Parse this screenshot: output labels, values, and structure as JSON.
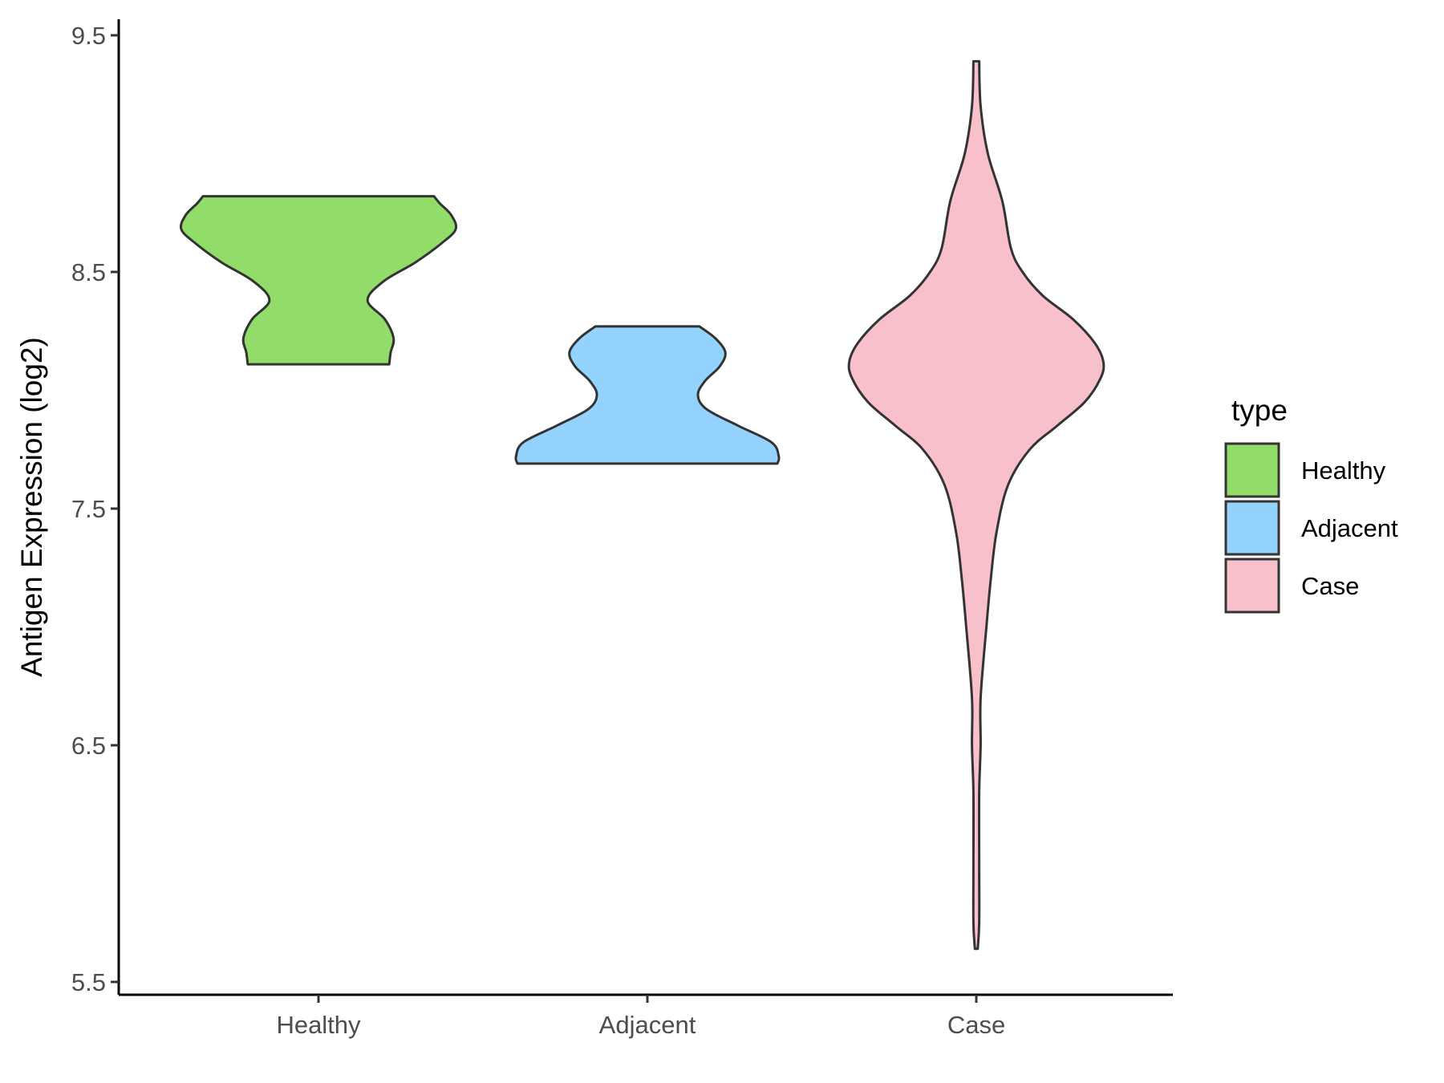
{
  "chart_data": {
    "type": "violin",
    "title": "",
    "xlabel": "",
    "ylabel": "Antigen Expression (log2)",
    "ylim": [
      5.45,
      9.55
    ],
    "yticks": [
      5.5,
      6.5,
      7.5,
      8.5,
      9.5
    ],
    "ytick_labels": [
      "5.5",
      "6.5",
      "7.5",
      "8.5",
      "9.5"
    ],
    "categories": [
      "Healthy",
      "Adjacent",
      "Case"
    ],
    "grid": false,
    "legend": {
      "title": "type",
      "position": "right",
      "entries": [
        {
          "label": "Healthy",
          "color": "#92DC6A"
        },
        {
          "label": "Adjacent",
          "color": "#94D3FD"
        },
        {
          "label": "Case",
          "color": "#F7C0CB"
        }
      ]
    },
    "series": [
      {
        "category": "Healthy",
        "color": "#92DC6A",
        "min": 8.11,
        "max": 8.82,
        "density": [
          [
            8.11,
            0.49
          ],
          [
            8.16,
            0.5
          ],
          [
            8.22,
            0.52
          ],
          [
            8.3,
            0.46
          ],
          [
            8.38,
            0.34
          ],
          [
            8.46,
            0.45
          ],
          [
            8.54,
            0.67
          ],
          [
            8.62,
            0.85
          ],
          [
            8.68,
            0.95
          ],
          [
            8.74,
            0.92
          ],
          [
            8.79,
            0.84
          ],
          [
            8.82,
            0.8
          ]
        ]
      },
      {
        "category": "Adjacent",
        "color": "#94D3FD",
        "min": 7.69,
        "max": 8.27,
        "density": [
          [
            7.69,
            0.9
          ],
          [
            7.72,
            0.91
          ],
          [
            7.78,
            0.86
          ],
          [
            7.85,
            0.63
          ],
          [
            7.92,
            0.41
          ],
          [
            7.98,
            0.35
          ],
          [
            8.04,
            0.4
          ],
          [
            8.1,
            0.5
          ],
          [
            8.16,
            0.54
          ],
          [
            8.22,
            0.47
          ],
          [
            8.27,
            0.36
          ]
        ]
      },
      {
        "category": "Case",
        "color": "#F7C0CB",
        "min": 5.64,
        "max": 9.39,
        "density": [
          [
            5.64,
            0.01
          ],
          [
            5.75,
            0.02
          ],
          [
            6.0,
            0.02
          ],
          [
            6.3,
            0.02
          ],
          [
            6.5,
            0.03
          ],
          [
            6.7,
            0.03
          ],
          [
            7.0,
            0.07
          ],
          [
            7.2,
            0.1
          ],
          [
            7.4,
            0.14
          ],
          [
            7.6,
            0.22
          ],
          [
            7.75,
            0.37
          ],
          [
            7.85,
            0.56
          ],
          [
            7.95,
            0.75
          ],
          [
            8.05,
            0.86
          ],
          [
            8.12,
            0.88
          ],
          [
            8.2,
            0.82
          ],
          [
            8.3,
            0.67
          ],
          [
            8.4,
            0.46
          ],
          [
            8.5,
            0.32
          ],
          [
            8.6,
            0.24
          ],
          [
            8.8,
            0.18
          ],
          [
            9.0,
            0.08
          ],
          [
            9.2,
            0.03
          ],
          [
            9.39,
            0.02
          ]
        ]
      }
    ]
  }
}
